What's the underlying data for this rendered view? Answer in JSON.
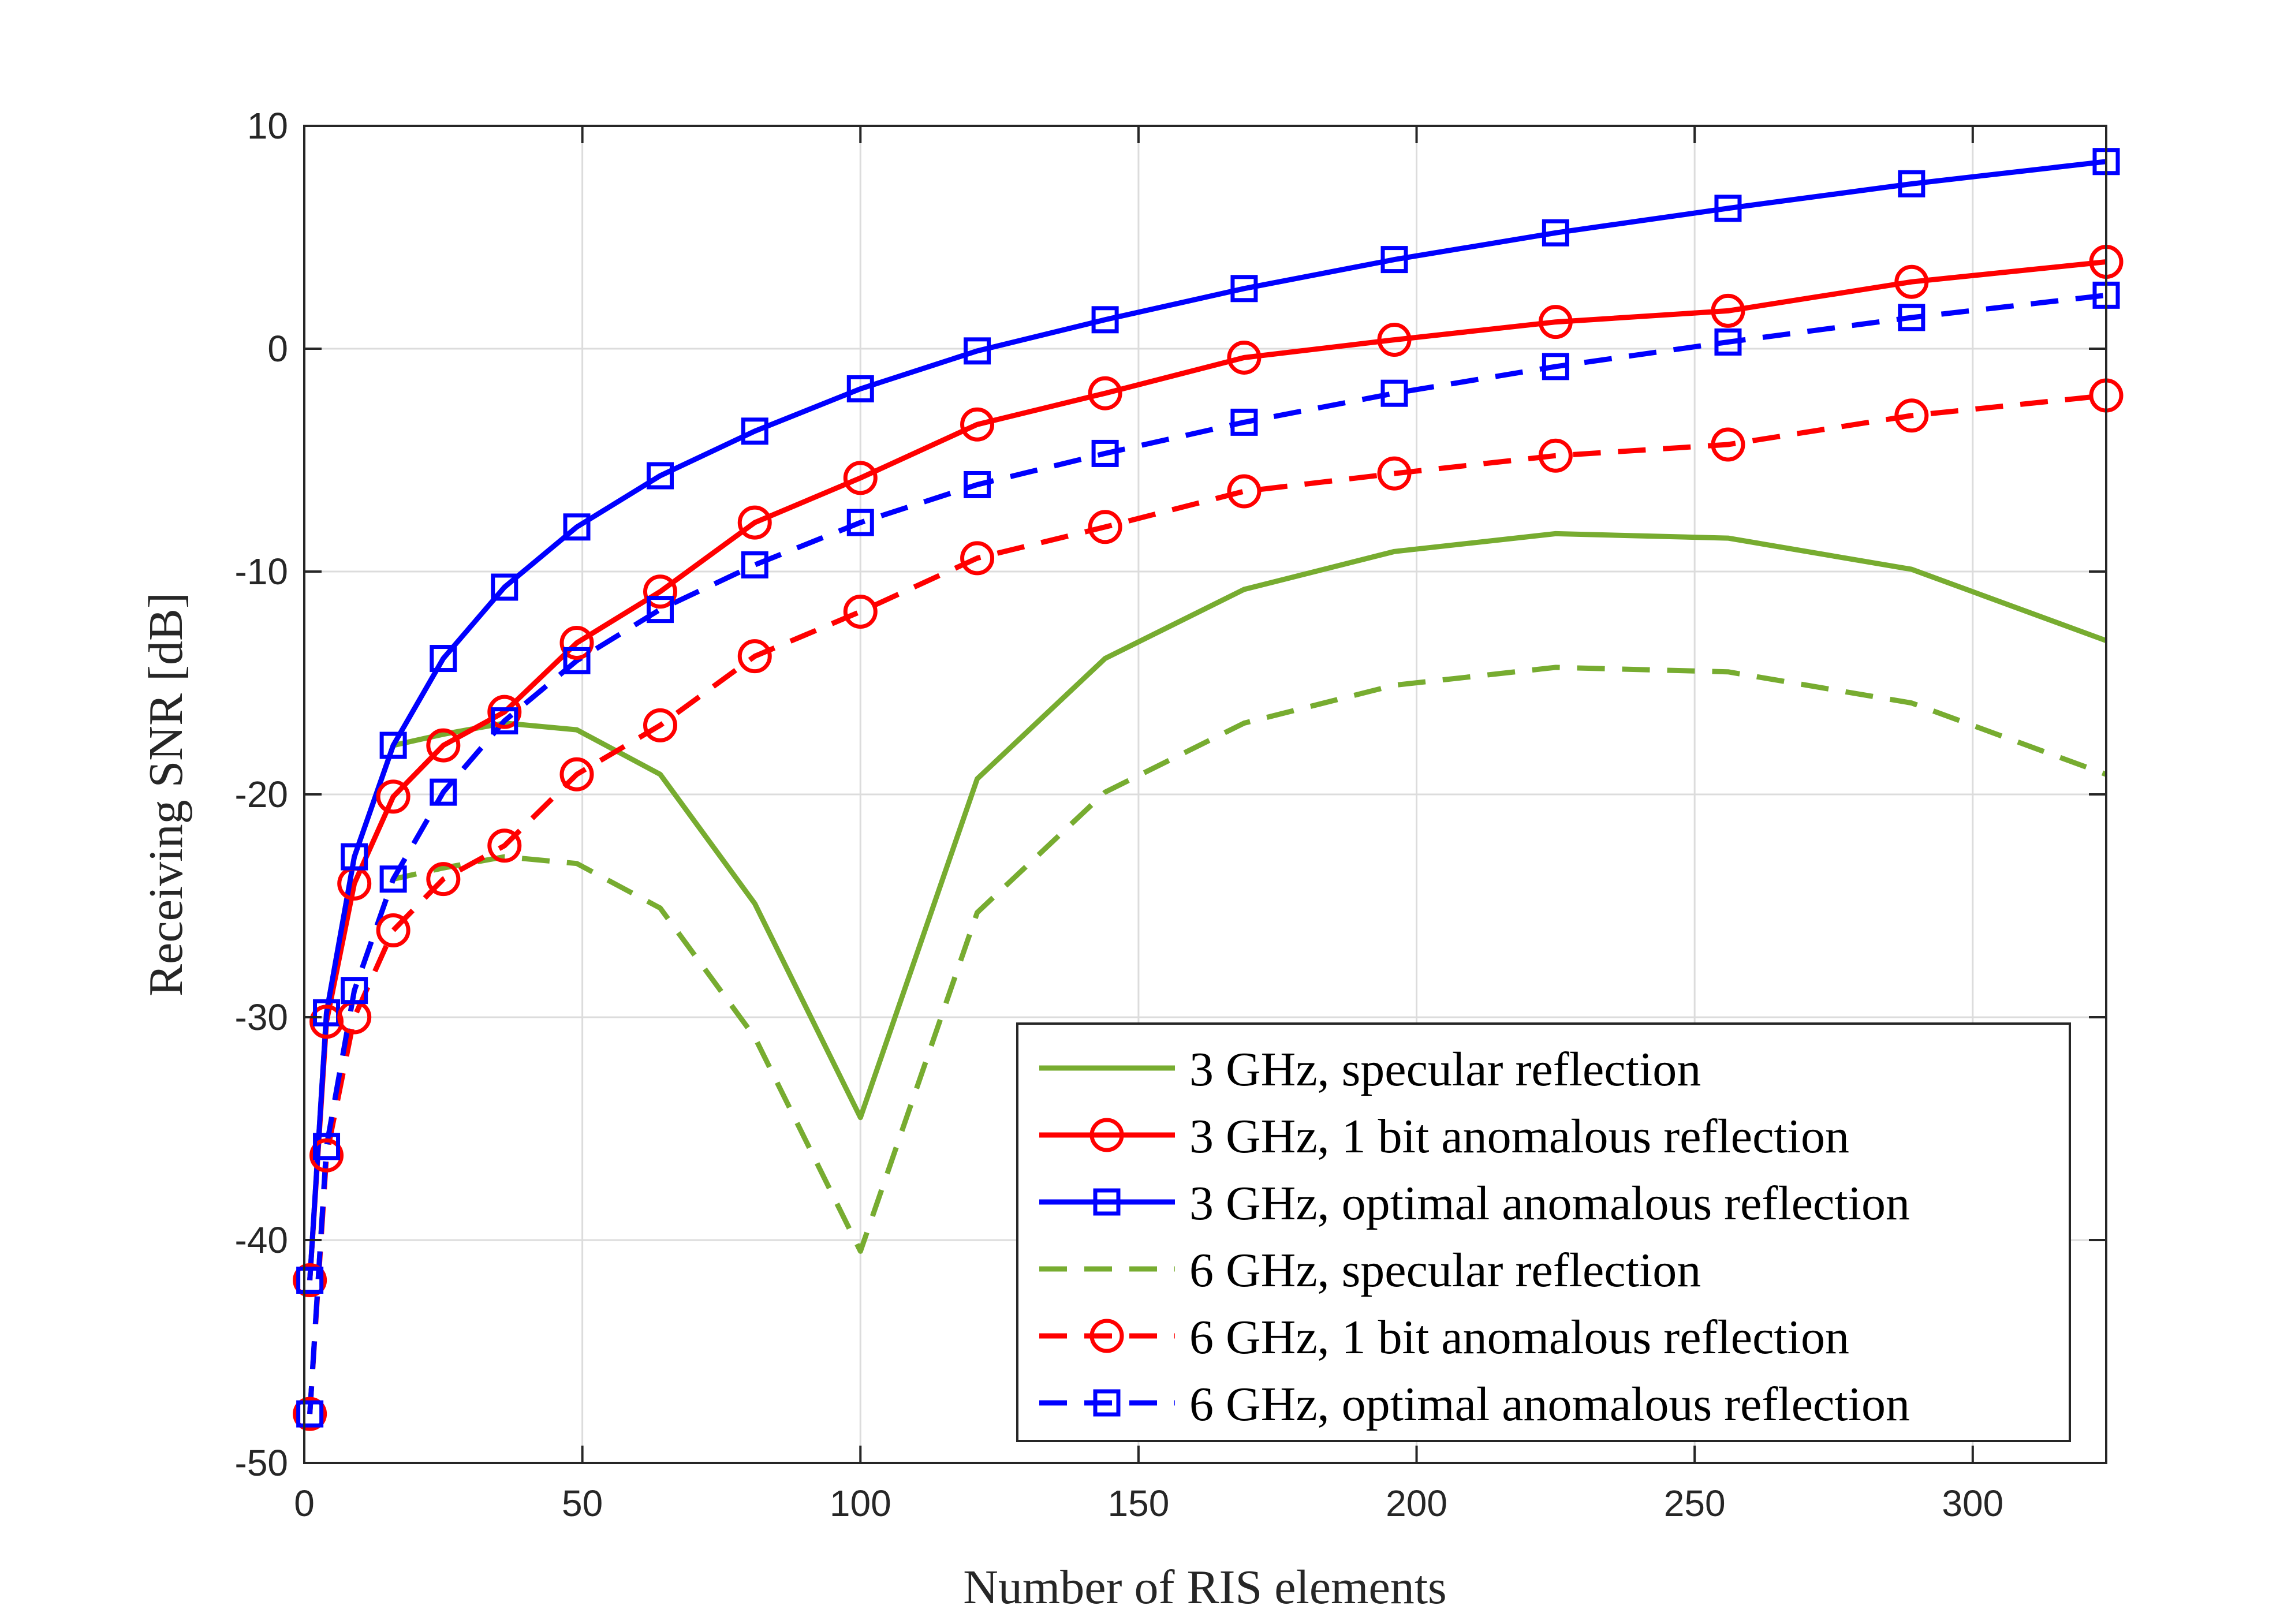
{
  "chart_data": {
    "type": "line",
    "title": "",
    "xlabel": "Number of RIS elements",
    "ylabel": "Receiving SNR  [dB]",
    "xlim": [
      0,
      324
    ],
    "ylim": [
      -50,
      10
    ],
    "xticks": [
      0,
      50,
      100,
      150,
      200,
      250,
      300
    ],
    "yticks": [
      10,
      0,
      -10,
      -20,
      -30,
      -40,
      -50
    ],
    "grid": true,
    "legend_position": "bottom-right",
    "x": [
      1,
      4,
      9,
      16,
      25,
      36,
      49,
      64,
      81,
      100,
      121,
      144,
      169,
      196,
      225,
      256,
      289,
      324
    ],
    "series": [
      {
        "name": "3 GHz, specular reflection",
        "color": "#77ac30",
        "dash": "solid",
        "marker": "none",
        "values": [
          -41.8,
          -29.8,
          -22.8,
          -17.8,
          -17.3,
          -16.8,
          -17.1,
          -19.1,
          -24.9,
          -34.5,
          -19.3,
          -13.9,
          -10.8,
          -9.1,
          -8.3,
          -8.5,
          -9.9,
          -13.1
        ]
      },
      {
        "name": "3 GHz, 1 bit anomalous reflection",
        "color": "#ff0000",
        "dash": "solid",
        "marker": "circle",
        "values": [
          -41.8,
          -30.2,
          -24.0,
          -20.1,
          -17.8,
          -16.3,
          -13.2,
          -10.9,
          -7.8,
          -5.8,
          -3.4,
          -2.0,
          -0.4,
          0.4,
          1.2,
          1.7,
          3.0,
          3.9
        ]
      },
      {
        "name": "3 GHz, optimal anomalous reflection",
        "color": "#0000ff",
        "dash": "solid",
        "marker": "square",
        "values": [
          -41.8,
          -29.8,
          -22.8,
          -17.8,
          -13.9,
          -10.7,
          -8.0,
          -5.7,
          -3.7,
          -1.8,
          -0.1,
          1.3,
          2.7,
          4.0,
          5.2,
          6.3,
          7.4,
          8.4
        ]
      },
      {
        "name": "6 GHz, specular reflection",
        "color": "#77ac30",
        "dash": "dashed",
        "marker": "none",
        "values": [
          -47.8,
          -35.8,
          -28.8,
          -23.8,
          -23.3,
          -22.8,
          -23.1,
          -25.1,
          -30.9,
          -40.5,
          -25.3,
          -19.9,
          -16.8,
          -15.1,
          -14.3,
          -14.5,
          -15.9,
          -19.1
        ]
      },
      {
        "name": "6 GHz, 1 bit anomalous reflection",
        "color": "#ff0000",
        "dash": "dashed",
        "marker": "circle",
        "values": [
          -47.8,
          -36.2,
          -30.0,
          -26.1,
          -23.8,
          -22.3,
          -19.1,
          -16.9,
          -13.8,
          -11.8,
          -9.4,
          -8.0,
          -6.4,
          -5.6,
          -4.8,
          -4.3,
          -3.0,
          -2.1
        ]
      },
      {
        "name": "6 GHz, optimal anomalous reflection",
        "color": "#0000ff",
        "dash": "dashed",
        "marker": "square",
        "values": [
          -47.8,
          -35.8,
          -28.8,
          -23.8,
          -19.9,
          -16.7,
          -14.0,
          -11.7,
          -9.7,
          -7.8,
          -6.1,
          -4.7,
          -3.3,
          -2.0,
          -0.8,
          0.3,
          1.4,
          2.4
        ]
      }
    ]
  }
}
